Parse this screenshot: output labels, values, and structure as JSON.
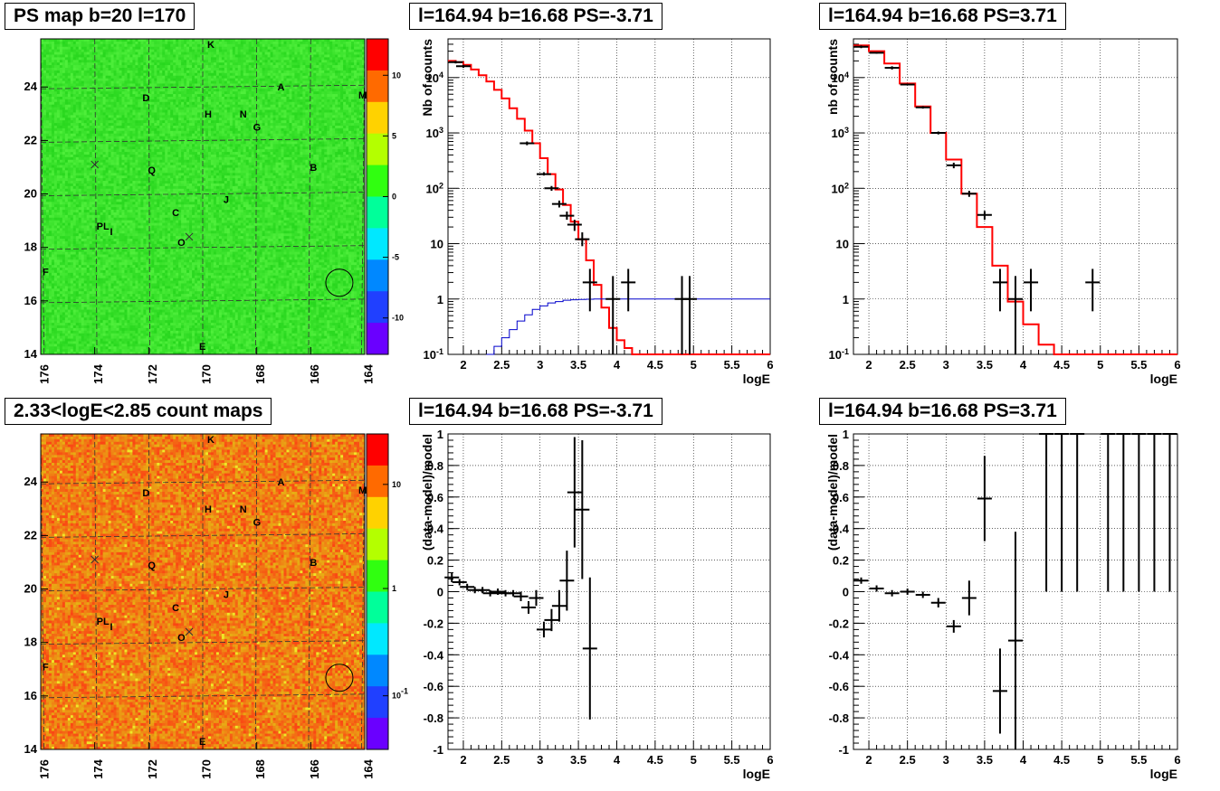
{
  "titles": {
    "map1": "PS map b=20 l=170",
    "spec1": "l=164.94 b=16.68 PS=-3.71",
    "spec2": "l=164.94 b=16.68 PS=3.71",
    "map2": "2.33<logE<2.85 count maps",
    "res1": "l=164.94 b=16.68 PS=-3.71",
    "res2": "l=164.94 b=16.68 PS=3.71"
  },
  "colors": {
    "model": "#ff0000",
    "background": "#0000cc",
    "data": "#000000"
  },
  "chart_data": [
    {
      "id": "map1",
      "type": "heatmap",
      "title": "PS map b=20 l=170",
      "xlim": [
        176,
        164
      ],
      "ylim": [
        14,
        25.8
      ],
      "xticks": [
        "176",
        "174",
        "172",
        "170",
        "168",
        "166",
        "164"
      ],
      "yticks": [
        "14",
        "16",
        "18",
        "20",
        "22",
        "24"
      ],
      "palette": "green",
      "colorbar": {
        "range": [
          -13,
          13
        ],
        "labels": [
          "10",
          "5",
          "0",
          "-5",
          "-10"
        ]
      },
      "sources": [
        {
          "label": "K",
          "l": 169.7,
          "b": 25.6
        },
        {
          "label": "A",
          "l": 167.1,
          "b": 24.0
        },
        {
          "label": "M",
          "l": 164.1,
          "b": 23.7
        },
        {
          "label": "D",
          "l": 172.1,
          "b": 23.6
        },
        {
          "label": "H",
          "l": 169.8,
          "b": 23.0
        },
        {
          "label": "N",
          "l": 168.5,
          "b": 23.0
        },
        {
          "label": "G",
          "l": 168.0,
          "b": 22.5
        },
        {
          "label": "B",
          "l": 165.9,
          "b": 21.0
        },
        {
          "label": "Q",
          "l": 171.9,
          "b": 20.9
        },
        {
          "label": "J",
          "l": 169.1,
          "b": 19.8
        },
        {
          "label": "C",
          "l": 171.0,
          "b": 19.3
        },
        {
          "label": "PL",
          "l": 173.8,
          "b": 18.8
        },
        {
          "label": "I",
          "l": 173.3,
          "b": 18.6
        },
        {
          "label": "O",
          "l": 170.8,
          "b": 18.2
        },
        {
          "label": "F",
          "l": 175.8,
          "b": 17.1
        },
        {
          "label": "E",
          "l": 170.0,
          "b": 14.3
        }
      ],
      "crosses": [
        {
          "l": 174.0,
          "b": 21.1
        },
        {
          "l": 170.5,
          "b": 18.4
        }
      ],
      "circle": {
        "l": 164.94,
        "b": 16.68
      }
    },
    {
      "id": "spec1",
      "type": "line",
      "title": "l=164.94 b=16.68 PS=-3.71",
      "xlabel": "logE",
      "ylabel": "Nb of counts",
      "xlim": [
        1.8,
        6
      ],
      "ylim": [
        0.1,
        50000
      ],
      "yscale": "log",
      "xticks": [
        "2",
        "2.5",
        "3",
        "3.5",
        "4",
        "4.5",
        "5",
        "5.5",
        "6"
      ],
      "yticks": [
        "10^{-1}",
        "1",
        "10",
        "10^{2}",
        "10^{3}",
        "10^{4}"
      ],
      "series": [
        {
          "role": "model",
          "step": true,
          "x": [
            1.8,
            1.9,
            2.0,
            2.1,
            2.2,
            2.3,
            2.4,
            2.5,
            2.6,
            2.7,
            2.8,
            2.9,
            3.0,
            3.1,
            3.2,
            3.3,
            3.4,
            3.5,
            3.6,
            3.7,
            3.8,
            3.9,
            4.0,
            4.1,
            4.2,
            6.0
          ],
          "y": [
            20000,
            19000,
            17000,
            14000,
            11000,
            8500,
            6000,
            4200,
            2800,
            1800,
            1100,
            650,
            350,
            180,
            95,
            50,
            25,
            12,
            5,
            1.8,
            0.7,
            0.3,
            0.18,
            0.13,
            0.1,
            0.1
          ]
        },
        {
          "role": "background",
          "step": true,
          "x": [
            2.3,
            2.4,
            2.5,
            2.6,
            2.7,
            2.8,
            2.9,
            3.0,
            3.1,
            3.2,
            3.3,
            3.4,
            3.5,
            3.6,
            3.7,
            6.0
          ],
          "y": [
            0.1,
            0.14,
            0.2,
            0.28,
            0.4,
            0.52,
            0.65,
            0.75,
            0.85,
            0.9,
            0.95,
            0.97,
            0.98,
            0.99,
            1.0,
            1.0
          ]
        },
        {
          "role": "data",
          "points": [
            {
              "x": 1.9,
              "y": 19000,
              "lo": 18000,
              "hi": 20000
            },
            {
              "x": 2.0,
              "y": 16000,
              "lo": 15000,
              "hi": 17000
            },
            {
              "x": 2.83,
              "y": 650,
              "lo": 600,
              "hi": 700
            },
            {
              "x": 3.05,
              "y": 180,
              "lo": 170,
              "hi": 195
            },
            {
              "x": 3.15,
              "y": 100,
              "lo": 90,
              "hi": 110
            },
            {
              "x": 3.25,
              "y": 52,
              "lo": 45,
              "hi": 60
            },
            {
              "x": 3.35,
              "y": 32,
              "lo": 27,
              "hi": 38
            },
            {
              "x": 3.45,
              "y": 22,
              "lo": 17,
              "hi": 27
            },
            {
              "x": 3.55,
              "y": 12,
              "lo": 9,
              "hi": 16
            },
            {
              "x": 3.65,
              "y": 2,
              "lo": 0.6,
              "hi": 3.5
            },
            {
              "x": 3.95,
              "y": 1,
              "lo": 0.1,
              "hi": 2.6
            },
            {
              "x": 4.15,
              "y": 2,
              "lo": 0.6,
              "hi": 3.5
            },
            {
              "x": 4.85,
              "y": 1,
              "lo": 0.1,
              "hi": 2.6
            },
            {
              "x": 4.95,
              "y": 1,
              "lo": 0.1,
              "hi": 2.6
            }
          ]
        }
      ]
    },
    {
      "id": "spec2",
      "type": "line",
      "title": "l=164.94 b=16.68 PS=3.71",
      "xlabel": "logE",
      "ylabel": "nb of counts",
      "xlim": [
        1.8,
        6
      ],
      "ylim": [
        0.1,
        50000
      ],
      "yscale": "log",
      "xticks": [
        "2",
        "2.5",
        "3",
        "3.5",
        "4",
        "4.5",
        "5",
        "5.5",
        "6"
      ],
      "yticks": [
        "10^{-1}",
        "1",
        "10",
        "10^{2}",
        "10^{3}",
        "10^{4}"
      ],
      "series": [
        {
          "role": "model",
          "step": true,
          "x": [
            1.8,
            2.0,
            2.2,
            2.4,
            2.6,
            2.8,
            3.0,
            3.2,
            3.4,
            3.6,
            3.8,
            4.0,
            4.2,
            4.4,
            6.0
          ],
          "y": [
            38000,
            30000,
            18000,
            7800,
            3000,
            1000,
            330,
            80,
            20,
            4,
            0.9,
            0.35,
            0.15,
            0.1,
            0.1
          ]
        },
        {
          "role": "data",
          "points": [
            {
              "x": 1.9,
              "y": 36000,
              "lo": 34000,
              "hi": 38000
            },
            {
              "x": 2.1,
              "y": 28000,
              "lo": 27000,
              "hi": 29000
            },
            {
              "x": 2.3,
              "y": 15000,
              "lo": 14000,
              "hi": 16000
            },
            {
              "x": 2.5,
              "y": 7500,
              "lo": 7200,
              "hi": 7800
            },
            {
              "x": 2.7,
              "y": 2900,
              "lo": 2750,
              "hi": 3050
            },
            {
              "x": 2.9,
              "y": 1000,
              "lo": 940,
              "hi": 1060
            },
            {
              "x": 3.1,
              "y": 260,
              "lo": 230,
              "hi": 290
            },
            {
              "x": 3.3,
              "y": 80,
              "lo": 70,
              "hi": 90
            },
            {
              "x": 3.5,
              "y": 33,
              "lo": 27,
              "hi": 39
            },
            {
              "x": 3.7,
              "y": 2,
              "lo": 0.6,
              "hi": 3.5
            },
            {
              "x": 3.9,
              "y": 1,
              "lo": 0.1,
              "hi": 2.6
            },
            {
              "x": 4.1,
              "y": 2,
              "lo": 0.6,
              "hi": 3.5
            },
            {
              "x": 4.9,
              "y": 2,
              "lo": 0.6,
              "hi": 3.5
            }
          ]
        }
      ]
    },
    {
      "id": "map2",
      "type": "heatmap",
      "title": "2.33<logE<2.85 count maps",
      "xlim": [
        176,
        164
      ],
      "ylim": [
        14,
        25.8
      ],
      "xticks": [
        "176",
        "174",
        "172",
        "170",
        "168",
        "166",
        "164"
      ],
      "yticks": [
        "14",
        "16",
        "18",
        "20",
        "22",
        "24"
      ],
      "palette": "orange",
      "colorbar": {
        "scale": "log",
        "labels": [
          "10",
          "1",
          "10^{-1}"
        ]
      },
      "sources": [
        {
          "label": "K",
          "l": 169.7,
          "b": 25.6
        },
        {
          "label": "A",
          "l": 167.1,
          "b": 24.0
        },
        {
          "label": "M",
          "l": 164.1,
          "b": 23.7
        },
        {
          "label": "D",
          "l": 172.1,
          "b": 23.6
        },
        {
          "label": "H",
          "l": 169.8,
          "b": 23.0
        },
        {
          "label": "N",
          "l": 168.5,
          "b": 23.0
        },
        {
          "label": "G",
          "l": 168.0,
          "b": 22.5
        },
        {
          "label": "B",
          "l": 165.9,
          "b": 21.0
        },
        {
          "label": "Q",
          "l": 171.9,
          "b": 20.9
        },
        {
          "label": "J",
          "l": 169.1,
          "b": 19.8
        },
        {
          "label": "C",
          "l": 171.0,
          "b": 19.3
        },
        {
          "label": "PL",
          "l": 173.8,
          "b": 18.8
        },
        {
          "label": "I",
          "l": 173.3,
          "b": 18.6
        },
        {
          "label": "O",
          "l": 170.8,
          "b": 18.2
        },
        {
          "label": "F",
          "l": 175.8,
          "b": 17.1
        },
        {
          "label": "E",
          "l": 170.0,
          "b": 14.3
        }
      ],
      "crosses": [
        {
          "l": 174.0,
          "b": 21.1
        },
        {
          "l": 170.5,
          "b": 18.4
        }
      ],
      "circle": {
        "l": 164.94,
        "b": 16.68
      }
    },
    {
      "id": "res1",
      "type": "scatter",
      "title": "l=164.94 b=16.68 PS=-3.71",
      "xlabel": "logE",
      "ylabel": "(data-model)/model",
      "xlim": [
        1.8,
        6
      ],
      "ylim": [
        -1,
        1
      ],
      "xticks": [
        "2",
        "2.5",
        "3",
        "3.5",
        "4",
        "4.5",
        "5",
        "5.5",
        "6"
      ],
      "yticks": [
        "-1",
        "-0.8",
        "-0.6",
        "-0.4",
        "-0.2",
        "0",
        "0.2",
        "0.4",
        "0.6",
        "0.8",
        "1"
      ],
      "points": [
        {
          "x": 1.85,
          "y": 0.09,
          "e": 0.03
        },
        {
          "x": 1.95,
          "y": 0.06,
          "e": 0.02
        },
        {
          "x": 2.05,
          "y": 0.03,
          "e": 0.02
        },
        {
          "x": 2.15,
          "y": 0.01,
          "e": 0.02
        },
        {
          "x": 2.25,
          "y": 0.01,
          "e": 0.02
        },
        {
          "x": 2.35,
          "y": -0.01,
          "e": 0.02
        },
        {
          "x": 2.45,
          "y": 0.0,
          "e": 0.02
        },
        {
          "x": 2.55,
          "y": -0.01,
          "e": 0.02
        },
        {
          "x": 2.65,
          "y": -0.01,
          "e": 0.02
        },
        {
          "x": 2.75,
          "y": -0.03,
          "e": 0.03
        },
        {
          "x": 2.85,
          "y": -0.1,
          "e": 0.04
        },
        {
          "x": 2.95,
          "y": -0.04,
          "e": 0.05
        },
        {
          "x": 3.05,
          "y": -0.24,
          "e": 0.05
        },
        {
          "x": 3.15,
          "y": -0.18,
          "e": 0.07
        },
        {
          "x": 3.25,
          "y": -0.09,
          "e": 0.1
        },
        {
          "x": 3.35,
          "y": 0.07,
          "e": 0.19
        },
        {
          "x": 3.45,
          "y": 0.63,
          "e": 0.35
        },
        {
          "x": 3.55,
          "y": 0.52,
          "e": 0.44
        },
        {
          "x": 3.65,
          "y": -0.36,
          "e": 0.45
        }
      ]
    },
    {
      "id": "res2",
      "type": "scatter",
      "title": "l=164.94 b=16.68 PS=3.71",
      "xlabel": "logE",
      "ylabel": "(data-model)/model",
      "xlim": [
        1.8,
        6
      ],
      "ylim": [
        -1,
        1
      ],
      "xticks": [
        "2",
        "2.5",
        "3",
        "3.5",
        "4",
        "4.5",
        "5",
        "5.5",
        "6"
      ],
      "yticks": [
        "-1",
        "-0.8",
        "-0.6",
        "-0.4",
        "-0.2",
        "0",
        "0.2",
        "0.4",
        "0.6",
        "0.8",
        "1"
      ],
      "points": [
        {
          "x": 1.9,
          "y": 0.07,
          "e": 0.02
        },
        {
          "x": 2.1,
          "y": 0.02,
          "e": 0.02
        },
        {
          "x": 2.3,
          "y": -0.01,
          "e": 0.02
        },
        {
          "x": 2.5,
          "y": 0.0,
          "e": 0.02
        },
        {
          "x": 2.7,
          "y": -0.02,
          "e": 0.02
        },
        {
          "x": 2.9,
          "y": -0.07,
          "e": 0.03
        },
        {
          "x": 3.1,
          "y": -0.22,
          "e": 0.04
        },
        {
          "x": 3.3,
          "y": -0.04,
          "e": 0.11
        },
        {
          "x": 3.5,
          "y": 0.59,
          "e": 0.27
        },
        {
          "x": 3.7,
          "y": -0.63,
          "e": 0.27
        },
        {
          "x": 3.9,
          "y": -0.31,
          "e": 0.69
        },
        {
          "x": 4.3,
          "y": 1,
          "e": 1
        },
        {
          "x": 4.5,
          "y": 1,
          "e": 1
        },
        {
          "x": 4.7,
          "y": 1,
          "e": 1
        },
        {
          "x": 5.1,
          "y": 1,
          "e": 1
        },
        {
          "x": 5.3,
          "y": 1,
          "e": 1
        },
        {
          "x": 5.5,
          "y": 1,
          "e": 1
        },
        {
          "x": 5.7,
          "y": 1,
          "e": 1
        },
        {
          "x": 5.9,
          "y": 1,
          "e": 1
        }
      ]
    }
  ]
}
